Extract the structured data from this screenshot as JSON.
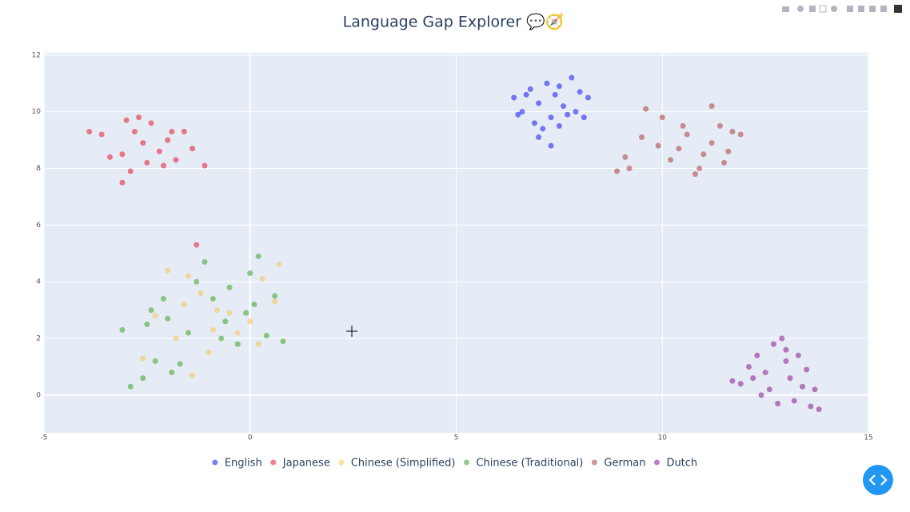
{
  "chart_data": {
    "type": "scatter",
    "title": "Language Gap Explorer 💬🧭",
    "xlim": [
      -5,
      15
    ],
    "ylim": [
      -1.33,
      12.08
    ],
    "xticks": [
      -5,
      0,
      5,
      10,
      15
    ],
    "yticks": [
      0,
      2,
      4,
      6,
      8,
      10,
      12
    ],
    "grid": true,
    "opacity": 0.5,
    "legend": "bottom",
    "series": [
      {
        "name": "English",
        "color": "#0000ee",
        "x": [
          6.4,
          6.6,
          6.8,
          7.0,
          7.2,
          7.4,
          7.6,
          7.8,
          8.0,
          8.2,
          6.5,
          6.9,
          7.1,
          7.3,
          7.5,
          7.7,
          7.9,
          7.0,
          7.3,
          6.7,
          7.5,
          8.1
        ],
        "y": [
          10.5,
          10.0,
          10.8,
          10.3,
          11.0,
          10.6,
          10.2,
          11.2,
          10.7,
          10.5,
          9.9,
          9.6,
          9.4,
          9.8,
          9.5,
          9.9,
          10.0,
          9.1,
          8.8,
          10.6,
          10.9,
          9.8
        ]
      },
      {
        "name": "Japanese",
        "color": "#e8001c",
        "x": [
          -3.9,
          -3.6,
          -3.4,
          -3.0,
          -2.8,
          -2.6,
          -2.4,
          -2.2,
          -2.0,
          -1.8,
          -1.6,
          -1.4,
          -1.1,
          -3.1,
          -2.9,
          -3.1,
          -2.5,
          -2.1,
          -1.9,
          -1.3,
          -2.7
        ],
        "y": [
          9.3,
          9.2,
          8.4,
          9.7,
          9.3,
          8.9,
          9.6,
          8.6,
          9.0,
          8.3,
          9.3,
          8.7,
          8.1,
          8.5,
          7.9,
          7.5,
          8.2,
          8.1,
          9.3,
          5.3,
          9.8
        ]
      },
      {
        "name": "Chinese (Simplified)",
        "color": "#f5c242",
        "x": [
          -2.0,
          -1.5,
          -1.2,
          -0.8,
          -0.3,
          0.2,
          0.6,
          -2.3,
          -1.8,
          -1.0,
          -0.5,
          0.3,
          0.7,
          -2.6,
          -1.4,
          0.0,
          -0.9,
          -1.6
        ],
        "y": [
          4.4,
          4.2,
          3.6,
          3.0,
          2.2,
          1.8,
          3.3,
          2.8,
          2.0,
          1.5,
          2.9,
          4.1,
          4.6,
          1.3,
          0.7,
          2.6,
          2.3,
          3.2
        ]
      },
      {
        "name": "Chinese (Traditional)",
        "color": "#2e9a12",
        "x": [
          -3.1,
          -2.9,
          -2.6,
          -2.3,
          -2.5,
          -2.4,
          -2.0,
          -1.7,
          -1.5,
          -1.3,
          -1.1,
          -0.9,
          -0.7,
          -0.5,
          -0.3,
          -0.1,
          0.1,
          0.2,
          0.4,
          0.6,
          0.8,
          -1.9,
          -0.6,
          -2.1,
          0.0
        ],
        "y": [
          2.3,
          0.3,
          0.6,
          1.2,
          2.5,
          3.0,
          2.7,
          1.1,
          2.2,
          4.0,
          4.7,
          3.4,
          2.0,
          3.8,
          1.8,
          2.9,
          3.2,
          4.9,
          2.1,
          3.5,
          1.9,
          0.8,
          2.6,
          3.4,
          4.3
        ]
      },
      {
        "name": "German",
        "color": "#a52a2a",
        "x": [
          8.9,
          9.2,
          9.5,
          9.6,
          9.9,
          10.0,
          10.2,
          10.4,
          10.6,
          10.8,
          11.0,
          11.2,
          11.4,
          11.5,
          11.7,
          11.9,
          11.2,
          10.5,
          10.9,
          11.6,
          9.1
        ],
        "y": [
          7.9,
          8.0,
          9.1,
          10.1,
          8.8,
          9.8,
          8.3,
          8.7,
          9.2,
          7.8,
          8.5,
          8.9,
          9.5,
          8.2,
          9.3,
          9.2,
          10.2,
          9.5,
          8.0,
          8.6,
          8.4
        ]
      },
      {
        "name": "Dutch",
        "color": "#800080",
        "x": [
          11.7,
          11.9,
          12.1,
          12.3,
          12.5,
          12.6,
          12.7,
          12.9,
          13.0,
          13.1,
          13.2,
          13.3,
          13.4,
          13.5,
          13.6,
          13.7,
          12.8,
          12.4,
          13.0,
          12.2,
          13.8
        ],
        "y": [
          0.5,
          0.4,
          1.0,
          1.4,
          0.8,
          0.2,
          1.8,
          2.0,
          1.2,
          0.6,
          -0.2,
          1.4,
          0.3,
          0.9,
          -0.4,
          0.2,
          -0.3,
          0.0,
          1.6,
          0.6,
          -0.5
        ]
      }
    ]
  }
}
